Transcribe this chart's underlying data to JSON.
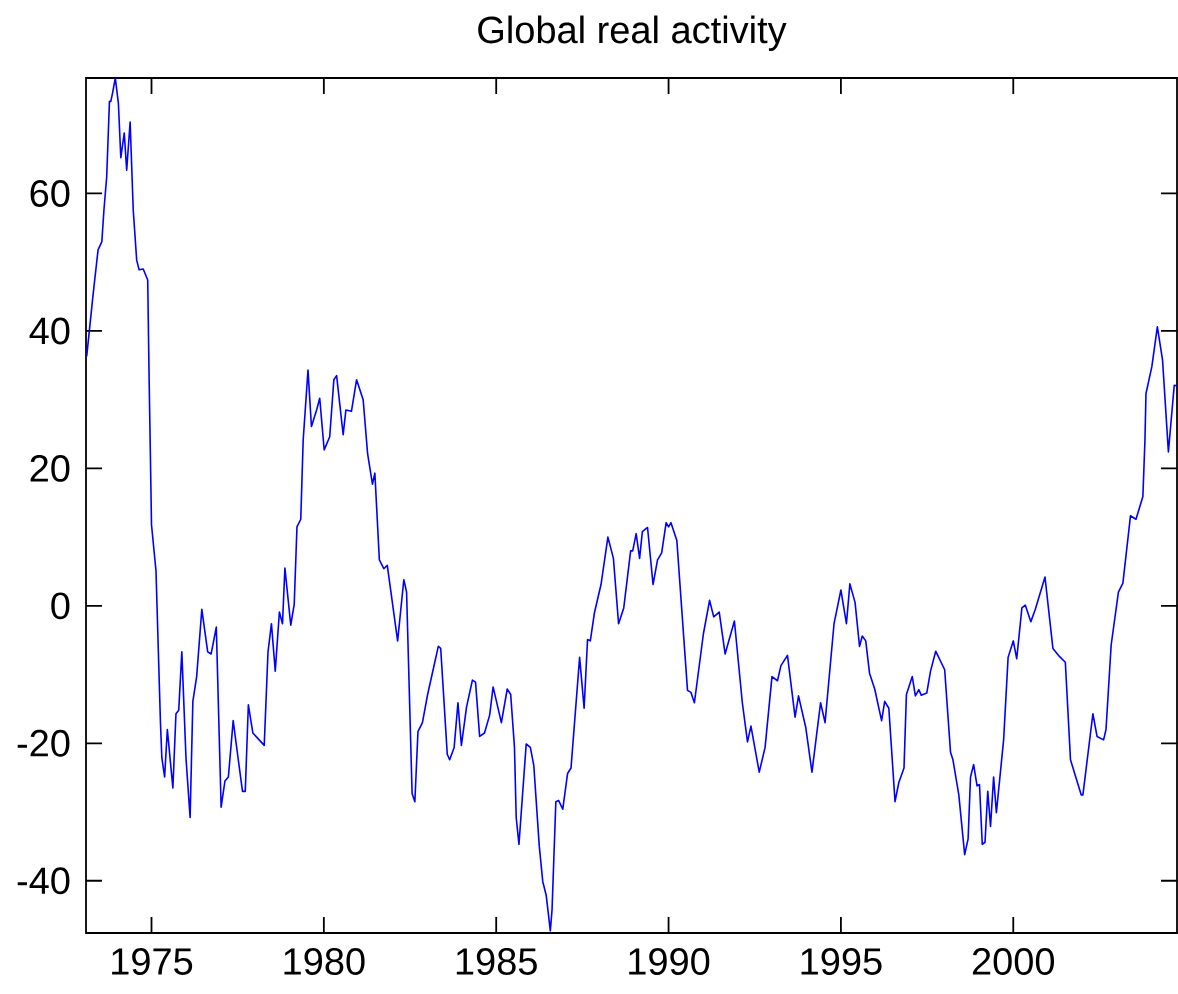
{
  "chart_data": {
    "type": "line",
    "title": "Global real activity",
    "xlim": [
      1973.1,
      2004.75
    ],
    "ylim": [
      -47.6,
      76.8
    ],
    "xticks": [
      1975,
      1980,
      1985,
      1990,
      1995,
      2000
    ],
    "yticks": [
      -40,
      -20,
      0,
      20,
      40,
      60
    ],
    "marker": "none",
    "line_style": "solid",
    "series": [
      {
        "color": "#0000ff",
        "x": [
          1973.12,
          1973.31,
          1973.45,
          1973.56,
          1973.62,
          1973.7,
          1973.78,
          1973.82,
          1973.87,
          1973.95,
          1974.04,
          1974.11,
          1974.21,
          1974.28,
          1974.38,
          1974.47,
          1974.57,
          1974.64,
          1974.76,
          1974.89,
          1974.93,
          1974.97,
          1975.0,
          1975.13,
          1975.26,
          1975.3,
          1975.38,
          1975.46,
          1975.62,
          1975.71,
          1975.79,
          1975.88,
          1976.0,
          1976.12,
          1976.2,
          1976.31,
          1976.46,
          1976.63,
          1976.73,
          1976.88,
          1977.02,
          1977.13,
          1977.23,
          1977.37,
          1977.51,
          1977.64,
          1977.72,
          1977.81,
          1977.94,
          1978.27,
          1978.38,
          1978.48,
          1978.59,
          1978.71,
          1978.8,
          1978.87,
          1979.04,
          1979.14,
          1979.22,
          1979.33,
          1979.4,
          1979.54,
          1979.64,
          1979.79,
          1979.88,
          1980.01,
          1980.17,
          1980.29,
          1980.37,
          1980.56,
          1980.64,
          1980.8,
          1980.95,
          1981.14,
          1981.27,
          1981.41,
          1981.48,
          1981.61,
          1981.74,
          1981.84,
          1982.14,
          1982.32,
          1982.4,
          1982.56,
          1982.64,
          1982.73,
          1982.86,
          1983.01,
          1983.17,
          1983.32,
          1983.39,
          1983.58,
          1983.65,
          1983.78,
          1983.89,
          1983.99,
          1984.14,
          1984.31,
          1984.4,
          1984.52,
          1984.66,
          1984.81,
          1984.91,
          1985.15,
          1985.32,
          1985.42,
          1985.53,
          1985.58,
          1985.66,
          1985.87,
          1985.99,
          1986.09,
          1986.25,
          1986.35,
          1986.45,
          1986.57,
          1986.62,
          1986.73,
          1986.81,
          1986.93,
          1987.07,
          1987.17,
          1987.42,
          1987.55,
          1987.65,
          1987.73,
          1987.85,
          1988.04,
          1988.24,
          1988.4,
          1988.55,
          1988.7,
          1988.9,
          1988.96,
          1989.06,
          1989.16,
          1989.24,
          1989.39,
          1989.55,
          1989.68,
          1989.8,
          1989.93,
          1990.0,
          1990.07,
          1990.24,
          1990.55,
          1990.65,
          1990.75,
          1991.01,
          1991.19,
          1991.31,
          1991.47,
          1991.64,
          1991.91,
          1992.14,
          1992.29,
          1992.39,
          1992.63,
          1992.8,
          1993.0,
          1993.16,
          1993.26,
          1993.45,
          1993.67,
          1993.77,
          1993.98,
          1994.16,
          1994.41,
          1994.54,
          1994.8,
          1995.0,
          1995.16,
          1995.26,
          1995.41,
          1995.54,
          1995.62,
          1995.72,
          1995.83,
          1995.98,
          1996.18,
          1996.27,
          1996.39,
          1996.57,
          1996.68,
          1996.83,
          1996.9,
          1997.07,
          1997.16,
          1997.26,
          1997.33,
          1997.49,
          1997.6,
          1997.75,
          1998.01,
          1998.18,
          1998.25,
          1998.42,
          1998.59,
          1998.69,
          1998.76,
          1998.85,
          1998.95,
          1999.02,
          1999.1,
          1999.18,
          1999.26,
          1999.34,
          1999.43,
          1999.51,
          1999.72,
          1999.85,
          2000.0,
          2000.1,
          2000.25,
          2000.35,
          2000.51,
          2000.64,
          2000.92,
          2001.15,
          2001.31,
          2001.51,
          2001.66,
          2001.97,
          2002.02,
          2002.31,
          2002.43,
          2002.62,
          2002.69,
          2002.84,
          2003.05,
          2003.18,
          2003.4,
          2003.56,
          2003.76,
          2003.82,
          2003.85,
          2004.02,
          2004.18,
          2004.33,
          2004.5,
          2004.67,
          2004.75
        ],
        "values": [
          36.3,
          45.5,
          51.8,
          53.0,
          57.6,
          62.4,
          73.4,
          73.4,
          74.6,
          76.8,
          73.1,
          65.2,
          68.8,
          63.4,
          70.4,
          57.6,
          50.3,
          48.9,
          49.0,
          47.4,
          33.4,
          21.2,
          11.8,
          5.1,
          -17.0,
          -22.1,
          -24.9,
          -18.0,
          -26.5,
          -15.7,
          -15.2,
          -6.7,
          -22.1,
          -30.8,
          -13.9,
          -10.3,
          -0.5,
          -6.7,
          -7.0,
          -3.1,
          -29.3,
          -25.5,
          -24.9,
          -16.7,
          -22.1,
          -27.0,
          -27.0,
          -14.4,
          -18.5,
          -20.3,
          -6.7,
          -2.6,
          -9.5,
          -0.9,
          -2.6,
          5.5,
          -2.8,
          0.2,
          11.5,
          12.6,
          24.1,
          34.3,
          26.1,
          28.5,
          30.2,
          22.7,
          24.6,
          32.9,
          33.5,
          24.9,
          28.5,
          28.3,
          32.9,
          30.0,
          22.1,
          17.7,
          19.3,
          6.7,
          5.4,
          5.9,
          -5.1,
          3.8,
          2.0,
          -27.3,
          -28.5,
          -18.3,
          -17.0,
          -12.9,
          -9.3,
          -5.9,
          -6.2,
          -21.6,
          -22.4,
          -20.6,
          -14.1,
          -20.3,
          -14.7,
          -10.8,
          -11.1,
          -19.0,
          -18.5,
          -15.9,
          -11.8,
          -17.0,
          -12.1,
          -12.9,
          -20.6,
          -30.8,
          -34.7,
          -20.1,
          -20.6,
          -23.2,
          -35.0,
          -40.1,
          -42.1,
          -47.3,
          -44.2,
          -28.5,
          -28.3,
          -29.6,
          -24.4,
          -23.6,
          -7.5,
          -14.9,
          -4.9,
          -5.1,
          -1.0,
          3.1,
          10.0,
          6.9,
          -2.6,
          -0.3,
          8.0,
          8.0,
          10.5,
          6.9,
          10.8,
          11.4,
          3.1,
          6.7,
          7.7,
          12.1,
          11.5,
          12.1,
          9.5,
          -12.3,
          -12.6,
          -14.1,
          -4.1,
          0.8,
          -1.6,
          -0.9,
          -7.0,
          -2.2,
          -14.1,
          -19.8,
          -17.5,
          -24.2,
          -20.6,
          -10.3,
          -10.9,
          -8.7,
          -7.2,
          -16.2,
          -13.1,
          -17.7,
          -24.2,
          -14.1,
          -17.0,
          -2.6,
          2.3,
          -2.6,
          3.2,
          0.5,
          -5.9,
          -4.4,
          -5.1,
          -9.8,
          -12.1,
          -16.7,
          -13.9,
          -14.9,
          -28.5,
          -25.7,
          -23.6,
          -12.9,
          -10.3,
          -13.1,
          -12.2,
          -13.0,
          -12.7,
          -9.5,
          -6.6,
          -9.3,
          -21.3,
          -22.4,
          -27.5,
          -36.2,
          -33.9,
          -24.9,
          -23.1,
          -26.2,
          -26.0,
          -34.7,
          -34.4,
          -27.0,
          -32.1,
          -24.9,
          -30.1,
          -19.5,
          -7.5,
          -5.1,
          -7.7,
          -0.3,
          0.1,
          -2.3,
          -0.5,
          4.2,
          -6.2,
          -7.2,
          -8.2,
          -22.4,
          -27.5,
          -27.5,
          -15.7,
          -19.0,
          -19.5,
          -18.0,
          -5.7,
          2.0,
          3.3,
          13.1,
          12.6,
          15.9,
          24.1,
          30.9,
          34.8,
          40.6,
          35.8,
          22.4,
          32.1,
          32.0
        ]
      }
    ]
  }
}
